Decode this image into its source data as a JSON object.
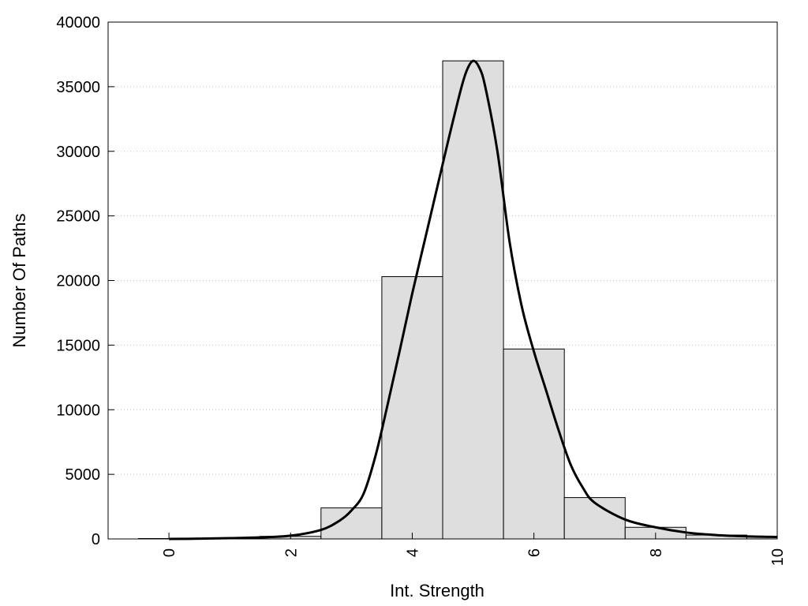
{
  "chart_data": {
    "type": "bar",
    "xlabel": "Int. Strength",
    "ylabel": "Number Of Paths",
    "xlim": [
      -1,
      10
    ],
    "ylim": [
      0,
      40000
    ],
    "x_ticks": [
      "0",
      "2",
      "4",
      "6",
      "8",
      "10"
    ],
    "y_ticks": [
      "0",
      "5000",
      "10000",
      "15000",
      "20000",
      "25000",
      "30000",
      "35000",
      "40000"
    ],
    "grid": "horizontal dotted",
    "histogram": {
      "bin_centers": [
        0,
        1,
        2,
        3,
        4,
        5,
        6,
        7,
        8,
        9,
        10
      ],
      "bin_width": 1,
      "values": [
        30,
        60,
        200,
        2400,
        20300,
        37000,
        14700,
        3200,
        900,
        300,
        150
      ]
    },
    "fit_curve": {
      "x": [
        0,
        0.5,
        1,
        1.5,
        2,
        2.5,
        2.8,
        3,
        3.2,
        3.4,
        3.6,
        3.8,
        4,
        4.2,
        4.4,
        4.6,
        4.8,
        4.9,
        5,
        5.1,
        5.2,
        5.4,
        5.6,
        5.8,
        6,
        6.2,
        6.4,
        6.6,
        6.8,
        7,
        7.5,
        8,
        8.5,
        9,
        9.5,
        10
      ],
      "y": [
        0,
        20,
        60,
        120,
        250,
        700,
        1400,
        2200,
        3500,
        6500,
        10500,
        14700,
        19000,
        23000,
        27000,
        31000,
        34800,
        36300,
        37000,
        36500,
        35000,
        30000,
        23000,
        18000,
        14500,
        11500,
        8500,
        5800,
        4000,
        2800,
        1500,
        900,
        500,
        300,
        200,
        150
      ]
    },
    "colors": {
      "bar_fill": "#dedede",
      "bar_stroke": "#000000",
      "curve": "#000000",
      "grid": "#c8c8c8"
    }
  }
}
